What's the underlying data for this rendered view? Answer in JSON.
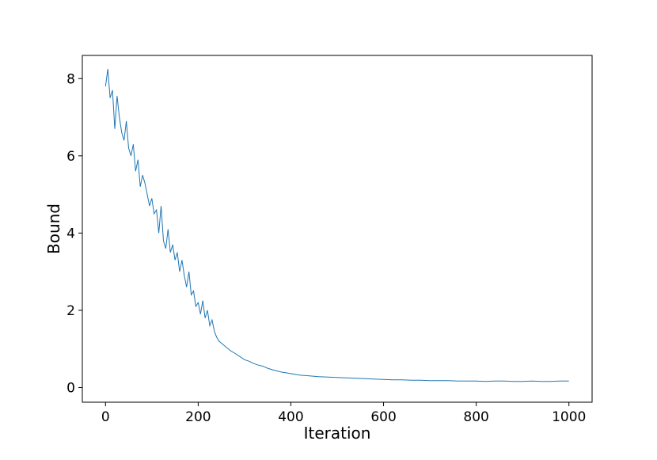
{
  "chart_data": {
    "type": "line",
    "title": "",
    "xlabel": "Iteration",
    "ylabel": "Bound",
    "xlim": [
      -50,
      1050
    ],
    "ylim": [
      -0.38,
      8.6
    ],
    "xticks": [
      0,
      200,
      400,
      600,
      800,
      1000
    ],
    "xtick_labels": [
      "0",
      "200",
      "400",
      "600",
      "800",
      "1000"
    ],
    "yticks": [
      0,
      2,
      4,
      6,
      8
    ],
    "ytick_labels": [
      "0",
      "2",
      "4",
      "6",
      "8"
    ],
    "grid": false,
    "legend": "none",
    "line_color": "#1f77b4",
    "series": [
      {
        "x": [
          0,
          5,
          10,
          15,
          20,
          25,
          30,
          35,
          40,
          45,
          50,
          55,
          60,
          65,
          70,
          75,
          80,
          85,
          90,
          95,
          100,
          105,
          110,
          115,
          120,
          125,
          130,
          135,
          140,
          145,
          150,
          155,
          160,
          165,
          170,
          175,
          180,
          185,
          190,
          195,
          200,
          205,
          210,
          215,
          220,
          225,
          230,
          235,
          240,
          245,
          250,
          260,
          270,
          280,
          290,
          300,
          310,
          320,
          330,
          340,
          350,
          360,
          370,
          380,
          390,
          400,
          420,
          440,
          460,
          480,
          500,
          520,
          540,
          560,
          580,
          600,
          620,
          640,
          660,
          680,
          700,
          720,
          740,
          760,
          780,
          800,
          820,
          840,
          860,
          880,
          900,
          920,
          940,
          960,
          980,
          1000
        ],
        "values": [
          7.8,
          8.25,
          7.5,
          7.7,
          6.7,
          7.55,
          7.0,
          6.6,
          6.4,
          6.9,
          6.2,
          6.0,
          6.3,
          5.6,
          5.9,
          5.2,
          5.5,
          5.3,
          5.0,
          4.7,
          4.9,
          4.5,
          4.6,
          4.0,
          4.7,
          3.8,
          3.6,
          4.1,
          3.5,
          3.7,
          3.3,
          3.5,
          3.0,
          3.3,
          2.9,
          2.6,
          3.0,
          2.4,
          2.5,
          2.1,
          2.2,
          1.9,
          2.25,
          1.8,
          2.0,
          1.6,
          1.75,
          1.45,
          1.3,
          1.2,
          1.15,
          1.05,
          0.95,
          0.88,
          0.8,
          0.72,
          0.68,
          0.62,
          0.58,
          0.55,
          0.5,
          0.46,
          0.43,
          0.4,
          0.38,
          0.36,
          0.32,
          0.3,
          0.28,
          0.27,
          0.26,
          0.25,
          0.24,
          0.23,
          0.22,
          0.21,
          0.2,
          0.2,
          0.19,
          0.19,
          0.18,
          0.18,
          0.18,
          0.17,
          0.17,
          0.17,
          0.16,
          0.17,
          0.17,
          0.16,
          0.16,
          0.17,
          0.16,
          0.16,
          0.17,
          0.17
        ]
      }
    ]
  }
}
